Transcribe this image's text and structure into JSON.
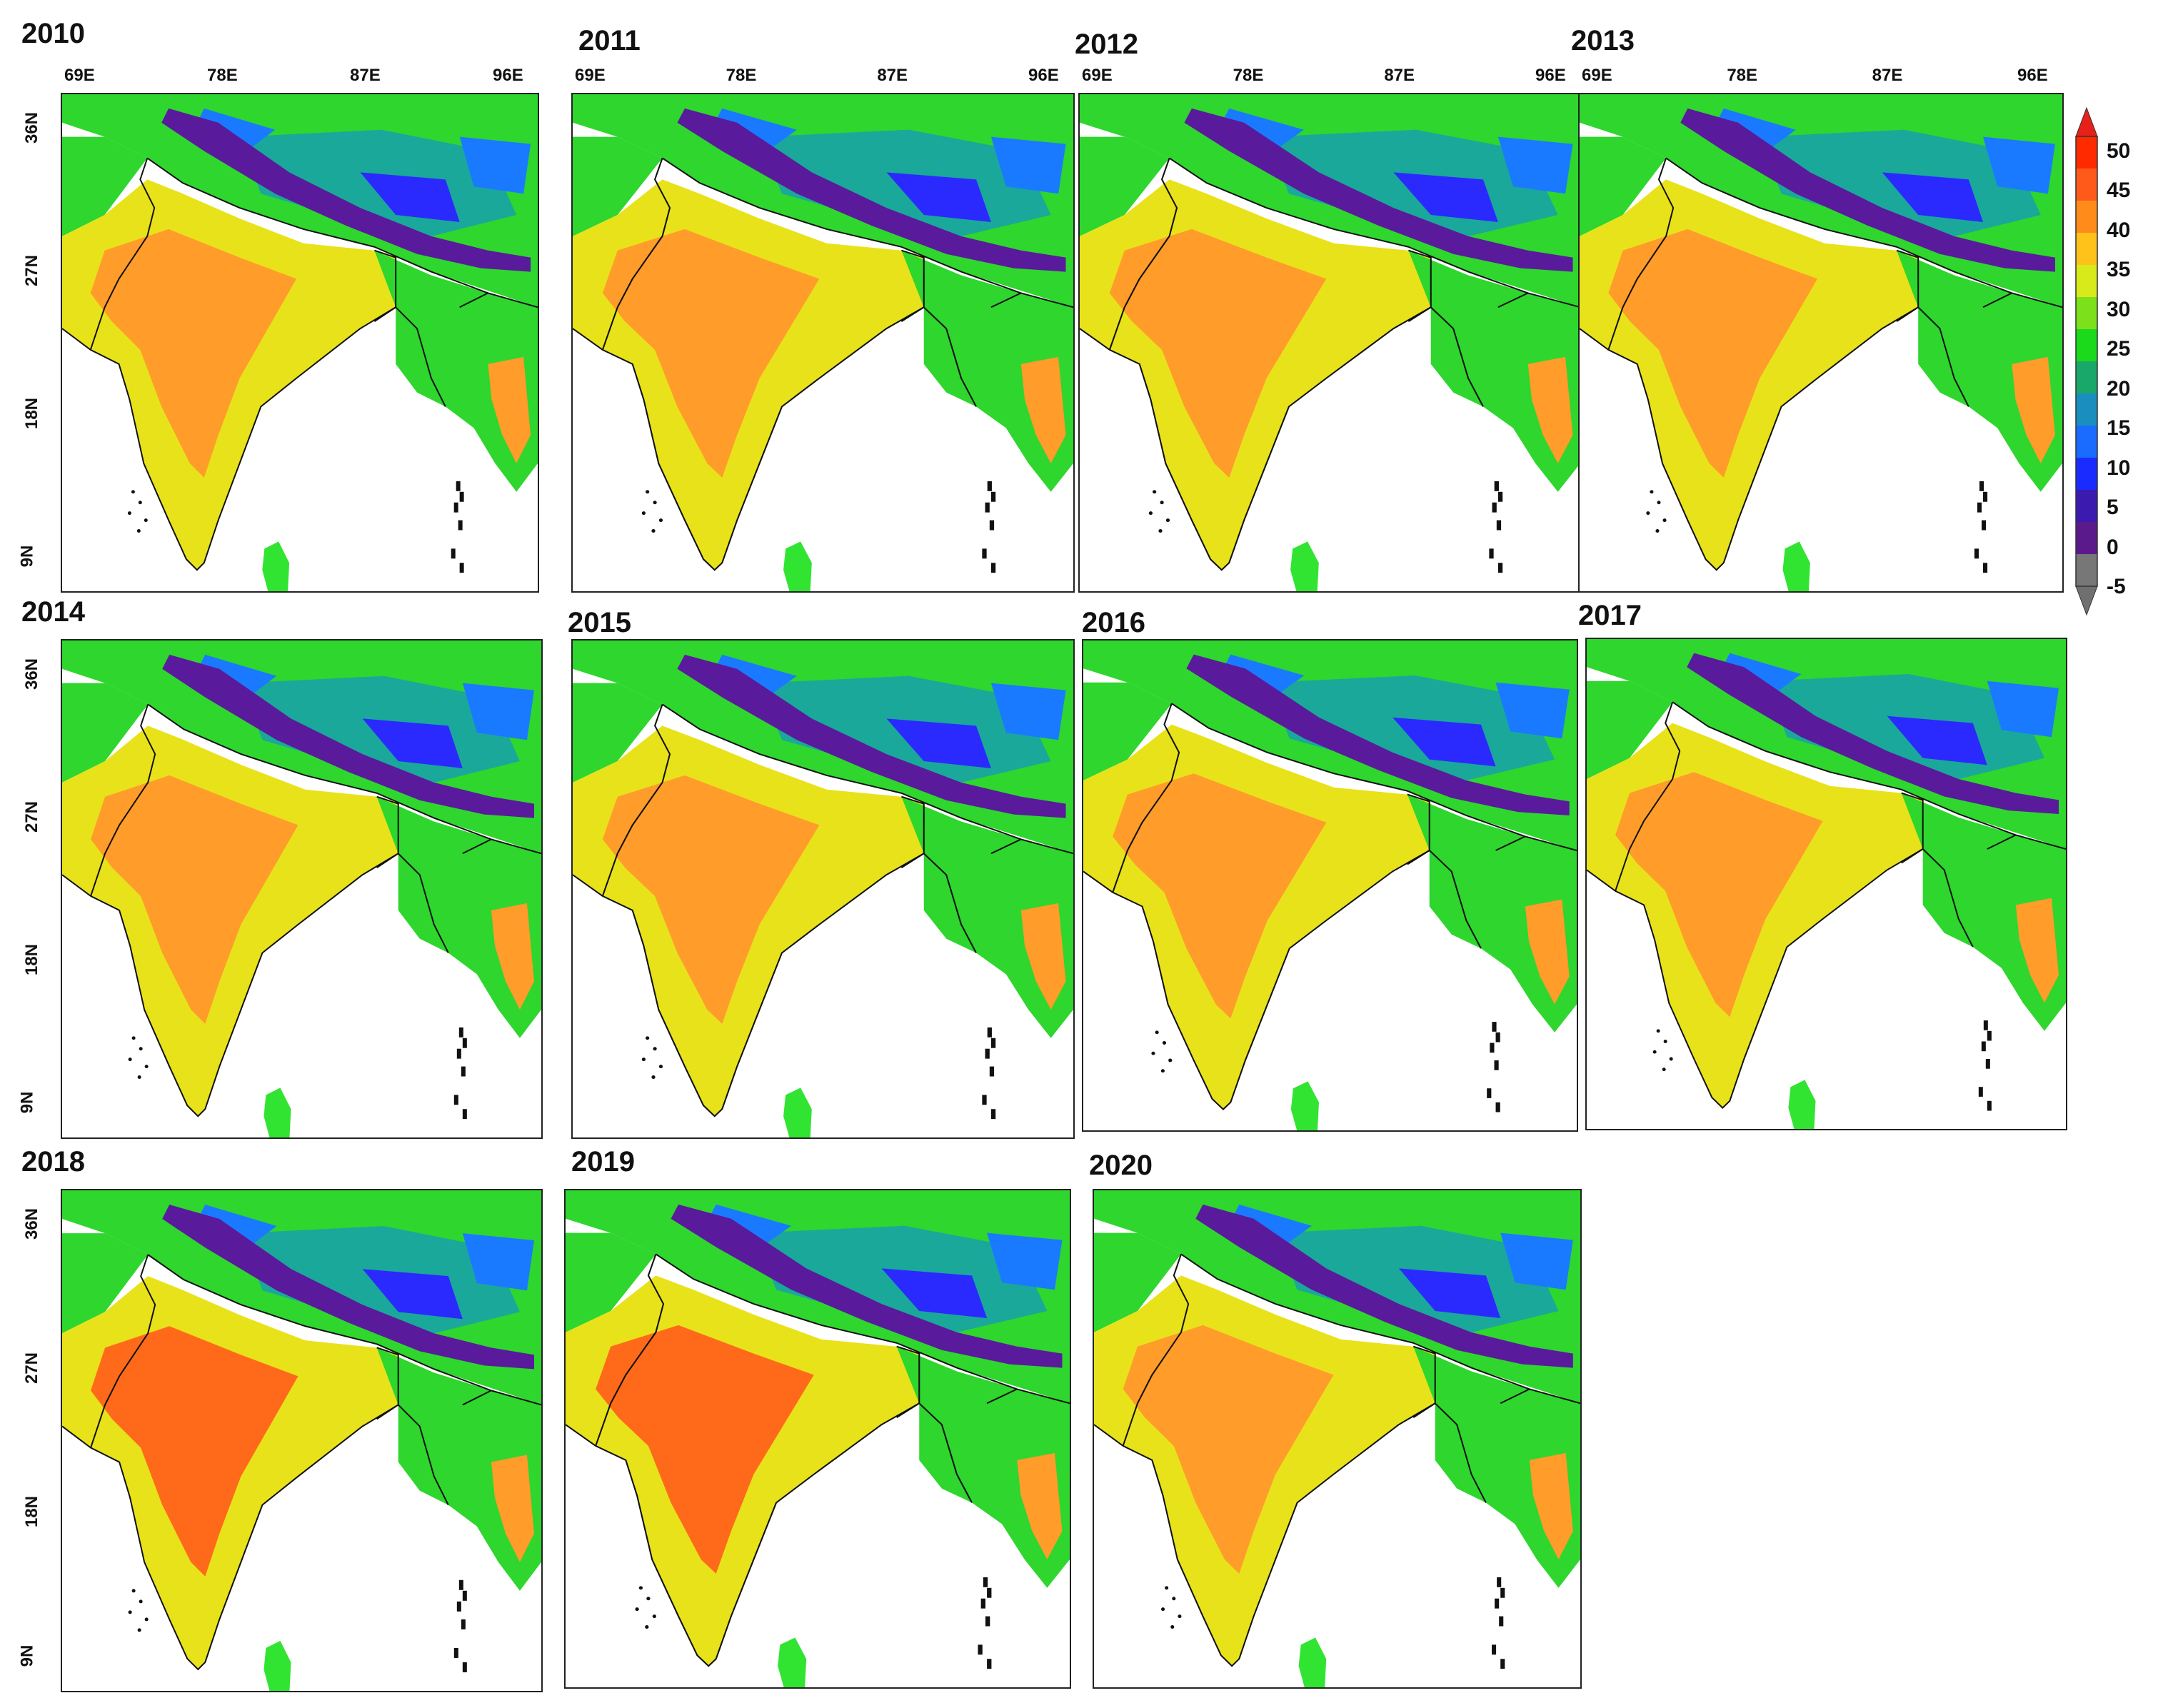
{
  "figure": {
    "panels": [
      {
        "year": "2010",
        "show_lon": true,
        "show_lat": true
      },
      {
        "year": "2011",
        "show_lon": true,
        "show_lat": false
      },
      {
        "year": "2012",
        "show_lon": true,
        "show_lat": false
      },
      {
        "year": "2013",
        "show_lon": true,
        "show_lat": false
      },
      {
        "year": "2014",
        "show_lon": false,
        "show_lat": true
      },
      {
        "year": "2015",
        "show_lon": false,
        "show_lat": false
      },
      {
        "year": "2016",
        "show_lon": false,
        "show_lat": false
      },
      {
        "year": "2017",
        "show_lon": false,
        "show_lat": false
      },
      {
        "year": "2018",
        "show_lon": false,
        "show_lat": true
      },
      {
        "year": "2019",
        "show_lon": false,
        "show_lat": false
      },
      {
        "year": "2020",
        "show_lon": false,
        "show_lat": false
      }
    ],
    "lon_labels": [
      "69E",
      "78E",
      "87E",
      "96E"
    ],
    "lat_labels": [
      "36N",
      "27N",
      "18N",
      "9N"
    ],
    "colorbar": {
      "ticks": [
        "50",
        "45",
        "40",
        "35",
        "30",
        "25",
        "20",
        "15",
        "10",
        "5",
        "0",
        "-5"
      ],
      "colors": [
        "#ff2a00",
        "#ff5a1a",
        "#ff8c1a",
        "#ffc21a",
        "#d9ea1a",
        "#7ce01a",
        "#1bd91b",
        "#1aa86a",
        "#1a8fbf",
        "#1a6bff",
        "#1a2bff",
        "#3b1ab0",
        "#5a1a8c",
        "#777777"
      ],
      "top_color": "#e8201a",
      "bottom_color": "#707070"
    },
    "palette": {
      "ocean": "#ffffff",
      "hot": "#ff6a1a",
      "warm": "#ff9c2a",
      "mild": "#e8e21a",
      "green": "#2ed62e",
      "teal": "#1aa89a",
      "cold": "#1a7aff",
      "colder": "#2a2aff",
      "coldest": "#5a1a9c",
      "border": "#111111",
      "srilanka": "#32e432"
    }
  }
}
